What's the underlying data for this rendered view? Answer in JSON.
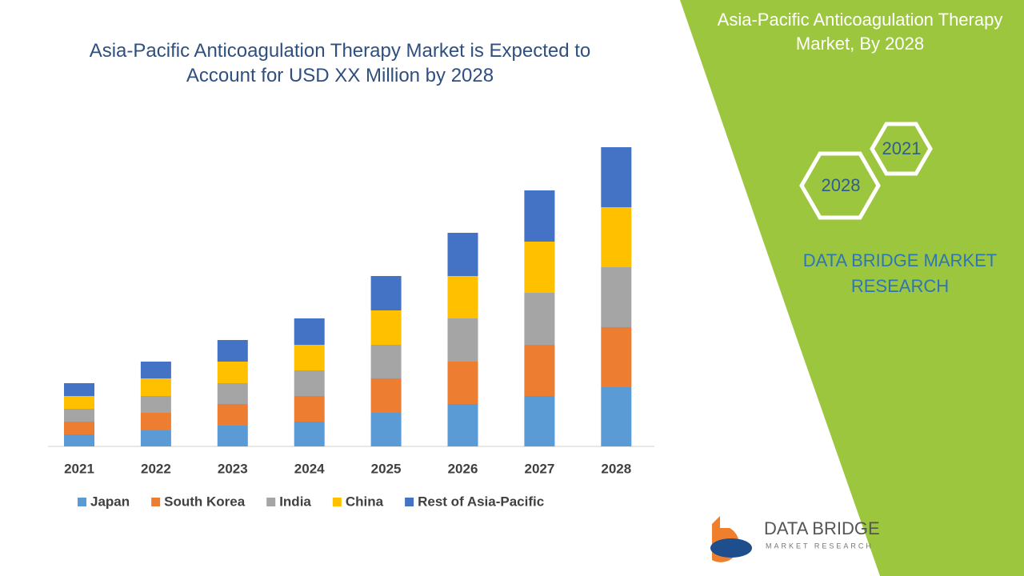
{
  "chart_data": {
    "type": "stacked-bar",
    "title": "Asia-Pacific Anticoagulation Therapy Market is Expected to Account for USD XX Million by 2028",
    "categories": [
      "2021",
      "2022",
      "2023",
      "2024",
      "2025",
      "2026",
      "2027",
      "2028"
    ],
    "series": [
      {
        "name": "Japan",
        "color": "#5b9bd5",
        "values": [
          15,
          20,
          26,
          31,
          42,
          53,
          63,
          74
        ]
      },
      {
        "name": "South Korea",
        "color": "#ed7d31",
        "values": [
          16,
          22,
          27,
          32,
          43,
          53,
          64,
          75
        ]
      },
      {
        "name": "India",
        "color": "#a5a5a5",
        "values": [
          16,
          21,
          26,
          32,
          42,
          54,
          65,
          75
        ]
      },
      {
        "name": "China",
        "color": "#ffc000",
        "values": [
          16,
          22,
          27,
          32,
          43,
          53,
          64,
          75
        ]
      },
      {
        "name": "Rest of Asia-Pacific",
        "color": "#4472c4",
        "values": [
          16,
          21,
          27,
          33,
          43,
          54,
          64,
          75
        ]
      }
    ]
  },
  "side_panel": {
    "title": "Asia-Pacific Anticoagulation Therapy Market, By 2028",
    "hexagons": [
      "2021",
      "2028"
    ],
    "brand": "DATA BRIDGE MARKET RESEARCH"
  },
  "logo": {
    "name": "DATA BRIDGE",
    "tagline": "MARKET RESEARCH"
  }
}
